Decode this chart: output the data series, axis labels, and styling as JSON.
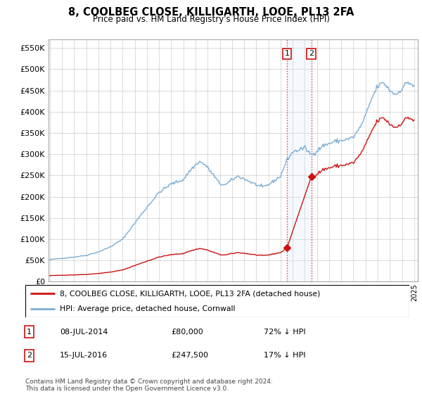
{
  "title": "8, COOLBEG CLOSE, KILLIGARTH, LOOE, PL13 2FA",
  "subtitle": "Price paid vs. HM Land Registry's House Price Index (HPI)",
  "legend_entries": [
    "8, COOLBEG CLOSE, KILLIGARTH, LOOE, PL13 2FA (detached house)",
    "HPI: Average price, detached house, Cornwall"
  ],
  "transactions": [
    {
      "num": 1,
      "date": "08-JUL-2014",
      "price": 80000,
      "pct": "72% ↓ HPI",
      "year": 2014.538
    },
    {
      "num": 2,
      "date": "15-JUL-2016",
      "price": 247500,
      "pct": "17% ↓ HPI",
      "year": 2016.538
    }
  ],
  "footnote": "Contains HM Land Registry data © Crown copyright and database right 2024.\nThis data is licensed under the Open Government Licence v3.0.",
  "hpi_color": "#7aadd4",
  "price_color": "#cc1111",
  "vline_color": "#cc1111",
  "shading_color": "#d8e8f8",
  "ylim": [
    0,
    570000
  ],
  "yticks": [
    0,
    50000,
    100000,
    150000,
    200000,
    250000,
    300000,
    350000,
    400000,
    450000,
    500000,
    550000
  ],
  "background_color": "#ffffff",
  "grid_color": "#cccccc"
}
